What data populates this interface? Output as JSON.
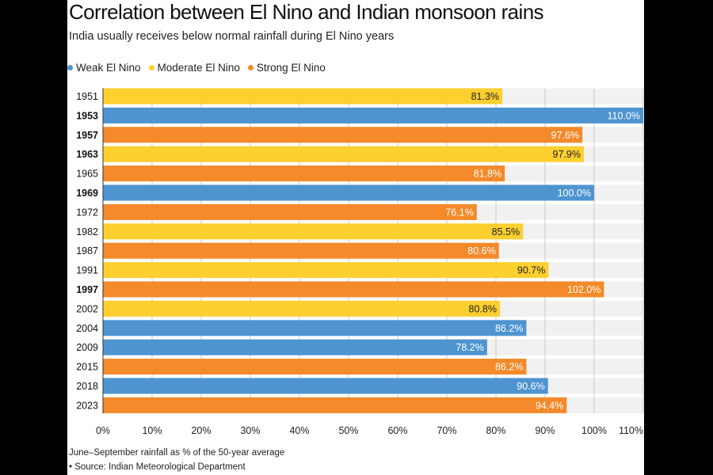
{
  "chart_data": {
    "type": "bar",
    "orientation": "horizontal",
    "title": "Correlation between El Nino and Indian monsoon rains",
    "subtitle": "India usually receives below normal rainfall during El Nino years",
    "legend": [
      {
        "name": "Weak El Nino",
        "color": "#4e95d0"
      },
      {
        "name": "Moderate El Nino",
        "color": "#fdcf2f"
      },
      {
        "name": "Strong El Nino",
        "color": "#f48a2a"
      }
    ],
    "legend_placement": "top-left",
    "categories": [
      "1951",
      "1953",
      "1957",
      "1963",
      "1965",
      "1969",
      "1972",
      "1982",
      "1987",
      "1991",
      "1997",
      "2002",
      "2004",
      "2009",
      "2015",
      "2018",
      "2023"
    ],
    "bold_categories": [
      "1953",
      "1957",
      "1963",
      "1969",
      "1997"
    ],
    "values": [
      81.3,
      110.0,
      97.6,
      97.9,
      81.8,
      100.0,
      76.1,
      85.5,
      80.6,
      90.7,
      102.0,
      80.8,
      86.2,
      78.2,
      86.2,
      90.6,
      94.4
    ],
    "data_labels": [
      "81.3%",
      "110.0%",
      "97.6%",
      "97.9%",
      "81.8%",
      "100.0%",
      "76.1%",
      "85.5%",
      "80.6%",
      "90.7%",
      "102.0%",
      "80.8%",
      "86.2%",
      "78.2%",
      "86.2%",
      "90.6%",
      "94.4%"
    ],
    "strength": [
      "Moderate El Nino",
      "Weak El Nino",
      "Strong El Nino",
      "Moderate El Nino",
      "Strong El Nino",
      "Weak El Nino",
      "Strong El Nino",
      "Moderate El Nino",
      "Strong El Nino",
      "Moderate El Nino",
      "Strong El Nino",
      "Moderate El Nino",
      "Weak El Nino",
      "Weak El Nino",
      "Strong El Nino",
      "Weak El Nino",
      "Strong El Nino"
    ],
    "xlim": [
      0,
      110
    ],
    "x_ticks": [
      0,
      10,
      20,
      30,
      40,
      50,
      60,
      70,
      80,
      90,
      100,
      110
    ],
    "x_tick_labels": [
      "0%",
      "10%",
      "20%",
      "30%",
      "40%",
      "50%",
      "60%",
      "70%",
      "80%",
      "90%",
      "100%",
      "110%"
    ],
    "grid": "vertical",
    "note": "June–September rainfall as % of the 50-year average",
    "source": "• Source: Indian Meteorological Department"
  }
}
